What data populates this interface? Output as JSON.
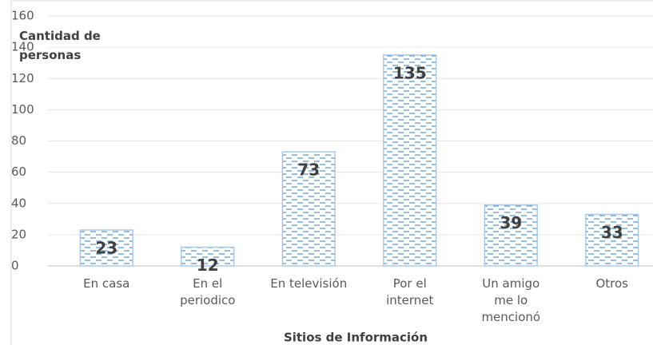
{
  "chart_data": {
    "type": "bar",
    "categories": [
      "En casa",
      "En el periodico",
      "En televisión",
      "Por el internet",
      "Un amigo me lo mencionó",
      "Otros"
    ],
    "values": [
      23,
      12,
      73,
      135,
      39,
      33
    ],
    "color": "#5b9bd5",
    "ylim": [
      0,
      160
    ],
    "yticks": [
      0,
      20,
      40,
      60,
      80,
      100,
      120,
      140,
      160
    ],
    "grid": true,
    "y_label": "Cantidad de personas",
    "x_label": "Sitios de Información"
  }
}
